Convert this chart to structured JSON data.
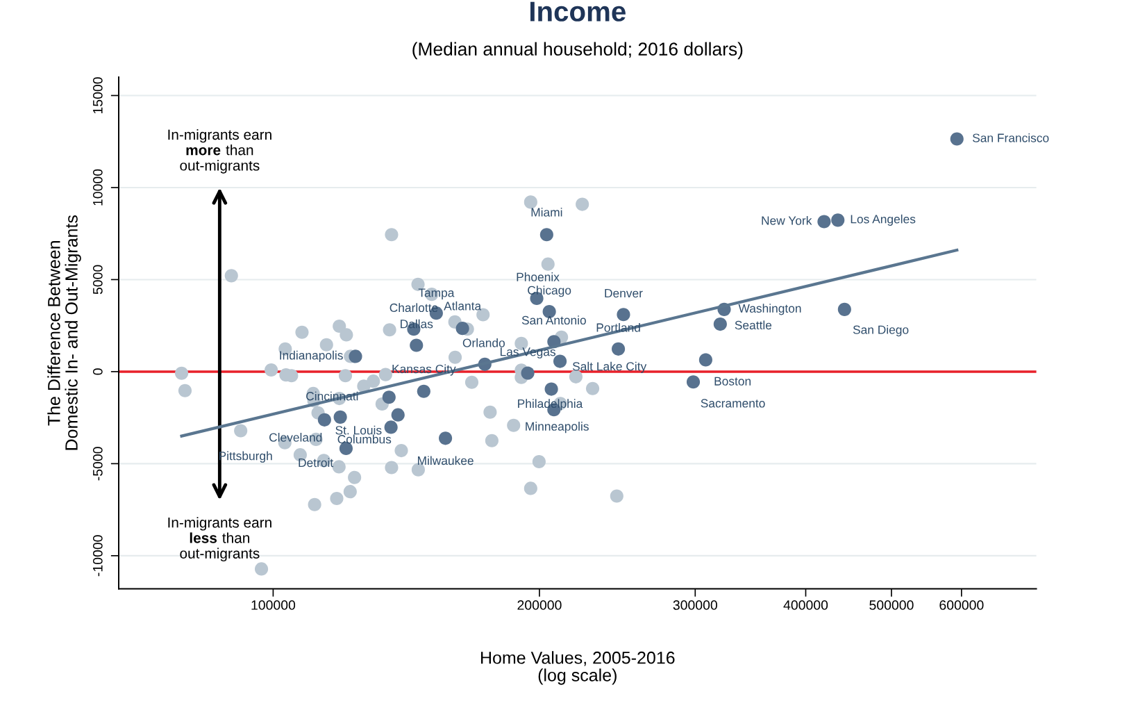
{
  "chart_data": {
    "type": "scatter",
    "title": "Income",
    "subtitle": "(Median annual household; 2016 dollars)",
    "xlabel": "Home Values, 2005-2016\n(log scale)",
    "ylabel": "The Difference Between\nDomestic In- and Out-Migrants",
    "log": "x",
    "grid": "y",
    "xlim": [
      66900,
      729000
    ],
    "ylim": [
      -11800,
      16000
    ],
    "xticks": [
      100000,
      200000,
      300000,
      400000,
      500000,
      600000
    ],
    "yticks": [
      -10000,
      -5000,
      0,
      5000,
      10000,
      15000
    ],
    "ref_lines": [
      {
        "axis": "y",
        "value": 0,
        "color": "#e8202a"
      }
    ],
    "series": [
      {
        "marker": "circle",
        "color": "#b9c6d1",
        "x": [
          136100,
          89700,
          145800,
          151100,
          160500,
          107800,
          118800,
          121000,
          135400,
          114900,
          103200,
          160600,
          122300,
          78800,
          99500,
          103400,
          104900,
          120700,
          134000,
          79500,
          126600,
          129800,
          111000,
          111200,
          118800,
          132800,
          112400,
          91900,
          111800,
          103100,
          107300,
          114100,
          118700,
          139600,
          136100,
          145900,
          123600,
          122200,
          118000,
          111400,
          97000,
          195500,
          223600,
          204500,
          172700,
          165800,
          211800,
          190800,
          190800,
          190800,
          167700,
          219900,
          229700,
          211200,
          175900,
          187000,
          176700,
          199800,
          195500,
          244600
        ],
        "values": [
          7440,
          5210,
          4740,
          4200,
          2700,
          2140,
          2470,
          2000,
          2270,
          1460,
          1230,
          780,
          830,
          -90,
          90,
          -180,
          -220,
          -220,
          -160,
          -1030,
          -790,
          -520,
          -1190,
          -1590,
          -1460,
          -1760,
          -2240,
          -3210,
          -3680,
          -3860,
          -4520,
          -4830,
          -5170,
          -4290,
          -5210,
          -5330,
          -5750,
          -6520,
          -6890,
          -7220,
          -10720,
          9210,
          9090,
          5840,
          3090,
          2310,
          1870,
          1530,
          80,
          -310,
          -580,
          -280,
          -920,
          -1730,
          -2200,
          -2920,
          -3750,
          -4890,
          -6340,
          -6760
        ]
      },
      {
        "marker": "circle",
        "color": "#58728f",
        "x": [
          592900,
          419600,
          434900,
          323500,
          320200,
          442500,
          308300,
          298500,
          248900,
          245600,
          203800,
          198600,
          205200,
          207700,
          211000,
          194000,
          207700,
          206300,
          173500,
          148000,
          152900,
          144200,
          145200,
          163700,
          123900,
          135200,
          114300,
          119100,
          120900,
          135900,
          138400,
          156600
        ],
        "values": [
          12640,
          8150,
          8230,
          3380,
          2580,
          3380,
          640,
          -560,
          3100,
          1230,
          7440,
          3980,
          3260,
          1630,
          560,
          -80,
          -2070,
          -950,
          400,
          -1070,
          3180,
          2310,
          1430,
          2350,
          830,
          -1390,
          -2620,
          -2470,
          -4170,
          -3020,
          -2350,
          -3620
        ]
      },
      {
        "type": "line",
        "color": "#5a7690",
        "x": [
          78800,
          592900
        ],
        "values": [
          -3500,
          6600
        ]
      }
    ],
    "annotations": [
      "In-migrants earn\nmore than\nout-migrants",
      "In-migrants earn\nless than\nout-migrants",
      {
        "text": "San Francisco",
        "x": 592900,
        "y": 12640
      },
      {
        "text": "New York",
        "x": 419600,
        "y": 8150
      },
      {
        "text": "Los Angeles",
        "x": 434900,
        "y": 8230
      },
      {
        "text": "Washington",
        "x": 323500,
        "y": 3380
      },
      {
        "text": "Seattle",
        "x": 320200,
        "y": 2580
      },
      {
        "text": "San Diego",
        "x": 442500,
        "y": 3380
      },
      {
        "text": "Boston",
        "x": 308300,
        "y": 640
      },
      {
        "text": "Sacramento",
        "x": 298500,
        "y": -560
      },
      {
        "text": "Denver",
        "x": 248900,
        "y": 3100
      },
      {
        "text": "Portland",
        "x": 245600,
        "y": 1230
      },
      {
        "text": "Miami",
        "x": 203800,
        "y": 7440
      },
      {
        "text": "Phoenix",
        "x": 198600,
        "y": 3980
      },
      {
        "text": "Chicago",
        "x": 205200,
        "y": 3260
      },
      {
        "text": "San Antonio",
        "x": 207700,
        "y": 1630
      },
      {
        "text": "Salt Lake City",
        "x": 211000,
        "y": 560
      },
      {
        "text": "Las Vegas",
        "x": 194000,
        "y": -80
      },
      {
        "text": "Philadelphia",
        "x": 207700,
        "y": -2070
      },
      {
        "text": "Minneapolis",
        "x": 187000,
        "y": -2920
      },
      {
        "text": "Orlando",
        "x": 173500,
        "y": 400
      },
      {
        "text": "Kansas City",
        "x": 148000,
        "y": -1070
      },
      {
        "text": "Tampa",
        "x": 152900,
        "y": 3180
      },
      {
        "text": "Charlotte",
        "x": 144200,
        "y": 2310
      },
      {
        "text": "Dallas",
        "x": 145200,
        "y": 1430
      },
      {
        "text": "Atlanta",
        "x": 163700,
        "y": 2350
      },
      {
        "text": "Indianapolis",
        "x": 123900,
        "y": 830
      },
      {
        "text": "Cincinnati",
        "x": 135200,
        "y": -1390
      },
      {
        "text": "Pittsburgh",
        "x": 103100,
        "y": -3860
      },
      {
        "text": "Cleveland",
        "x": 119100,
        "y": -2470
      },
      {
        "text": "Columbus",
        "x": 120900,
        "y": -4170
      },
      {
        "text": "St. Louis",
        "x": 135900,
        "y": -3020
      },
      {
        "text": "Detroit",
        "x": 118700,
        "y": -5170
      },
      {
        "text": "Milwaukee",
        "x": 156600,
        "y": -3620
      }
    ]
  }
}
